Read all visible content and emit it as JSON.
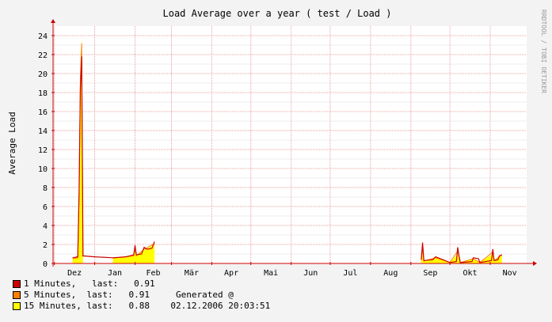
{
  "chart_data": {
    "type": "area",
    "title": "Load Average over a year ( test / Load )",
    "ylabel": "Average Load",
    "xlabel": "",
    "watermark": "RRDTOOL / TOBI OETIKER",
    "x_ticks": [
      "Dez",
      "Jan",
      "Feb",
      "Mär",
      "Apr",
      "Mai",
      "Jun",
      "Jul",
      "Aug",
      "Sep",
      "Okt",
      "Nov"
    ],
    "y_ticks": [
      0,
      2,
      4,
      6,
      8,
      10,
      12,
      14,
      16,
      18,
      20,
      22,
      24
    ],
    "ylim": [
      0,
      25
    ],
    "grid": true,
    "colors": {
      "background": "#f3f3f3",
      "plot_bg": "#ffffff",
      "major_grid": "#e8a0a0",
      "minor_grid": "#eeeeee",
      "axis": "#cc0000",
      "line_1min": "#cc0000",
      "fill_15min": "#ffff00",
      "fill_5min": "#ff8000"
    },
    "series": [
      {
        "name": "1 Minutes",
        "color": "#cc0000",
        "points": [
          [
            "2005-12-15",
            0.6
          ],
          [
            "2005-12-19",
            0.7
          ],
          [
            "2005-12-20",
            7.5
          ],
          [
            "2005-12-21",
            18.5
          ],
          [
            "2005-12-22",
            21.8
          ],
          [
            "2005-12-23",
            0.8
          ],
          [
            "2006-01-01",
            0.7
          ],
          [
            "2006-01-15",
            0.6
          ],
          [
            "2006-01-25",
            0.7
          ],
          [
            "2006-01-31",
            0.9
          ],
          [
            "2006-02-01",
            1.9
          ],
          [
            "2006-02-02",
            0.9
          ],
          [
            "2006-02-06",
            1.0
          ],
          [
            "2006-02-08",
            1.7
          ],
          [
            "2006-02-10",
            1.5
          ],
          [
            "2006-02-14",
            1.6
          ],
          [
            "2006-02-16",
            2.3
          ],
          [
            "2006-09-09",
            0.4
          ],
          [
            "2006-09-10",
            2.2
          ],
          [
            "2006-09-11",
            0.3
          ],
          [
            "2006-09-18",
            0.4
          ],
          [
            "2006-09-20",
            0.7
          ],
          [
            "2006-10-01",
            0.1
          ],
          [
            "2006-10-06",
            0.2
          ],
          [
            "2006-10-07",
            1.7
          ],
          [
            "2006-10-08",
            0.8
          ],
          [
            "2006-10-09",
            0.1
          ],
          [
            "2006-10-18",
            0.2
          ],
          [
            "2006-10-19",
            0.6
          ],
          [
            "2006-10-23",
            0.5
          ],
          [
            "2006-10-24",
            0.1
          ],
          [
            "2006-11-02",
            0.3
          ],
          [
            "2006-11-03",
            1.5
          ],
          [
            "2006-11-04",
            0.3
          ],
          [
            "2006-11-07",
            0.4
          ],
          [
            "2006-11-08",
            0.8
          ],
          [
            "2006-11-10",
            0.91
          ]
        ]
      },
      {
        "name": "5 Minutes",
        "color": "#ff8000",
        "points": [
          [
            "2005-12-15",
            0.5
          ],
          [
            "2005-12-19",
            0.6
          ],
          [
            "2005-12-20",
            7.0
          ],
          [
            "2005-12-21",
            19.5
          ],
          [
            "2005-12-22",
            23.2
          ],
          [
            "2005-12-23",
            0.7
          ],
          [
            "2006-01-15",
            0.55
          ],
          [
            "2006-01-31",
            0.8
          ],
          [
            "2006-02-01",
            1.5
          ],
          [
            "2006-02-02",
            0.8
          ],
          [
            "2006-02-08",
            1.5
          ],
          [
            "2006-02-16",
            2.1
          ],
          [
            "2006-09-09",
            0.3
          ],
          [
            "2006-09-10",
            1.5
          ],
          [
            "2006-09-11",
            0.25
          ],
          [
            "2006-09-20",
            0.6
          ],
          [
            "2006-10-01",
            0.1
          ],
          [
            "2006-10-07",
            1.3
          ],
          [
            "2006-10-09",
            0.1
          ],
          [
            "2006-10-19",
            0.5
          ],
          [
            "2006-10-24",
            0.1
          ],
          [
            "2006-11-03",
            1.2
          ],
          [
            "2006-11-04",
            0.3
          ],
          [
            "2006-11-10",
            0.91
          ]
        ]
      },
      {
        "name": "15 Minutes",
        "color": "#ffff00",
        "points": [
          [
            "2005-12-15",
            0.5
          ],
          [
            "2005-12-19",
            0.6
          ],
          [
            "2005-12-20",
            8.0
          ],
          [
            "2005-12-21",
            21.0
          ],
          [
            "2005-12-22",
            23.7
          ],
          [
            "2005-12-23",
            0.7
          ],
          [
            "2006-01-15",
            0.55
          ],
          [
            "2006-01-31",
            0.8
          ],
          [
            "2006-02-01",
            1.3
          ],
          [
            "2006-02-02",
            0.8
          ],
          [
            "2006-02-08",
            1.4
          ],
          [
            "2006-02-16",
            2.0
          ],
          [
            "2006-09-09",
            0.3
          ],
          [
            "2006-09-10",
            1.2
          ],
          [
            "2006-09-11",
            0.25
          ],
          [
            "2006-09-20",
            0.6
          ],
          [
            "2006-10-01",
            0.1
          ],
          [
            "2006-10-07",
            1.0
          ],
          [
            "2006-10-09",
            0.1
          ],
          [
            "2006-10-19",
            0.5
          ],
          [
            "2006-10-24",
            0.1
          ],
          [
            "2006-11-03",
            1.0
          ],
          [
            "2006-11-04",
            0.3
          ],
          [
            "2006-11-10",
            0.88
          ]
        ]
      }
    ]
  },
  "legend": [
    {
      "swatch": "#cc0000",
      "text": "1 Minutes,   last:   0.91"
    },
    {
      "swatch": "#ff8000",
      "text": "5 Minutes,  last:   0.91     Generated @"
    },
    {
      "swatch": "#ffff00",
      "text": "15 Minutes, last:   0.88    02.12.2006 20:03:51"
    }
  ]
}
